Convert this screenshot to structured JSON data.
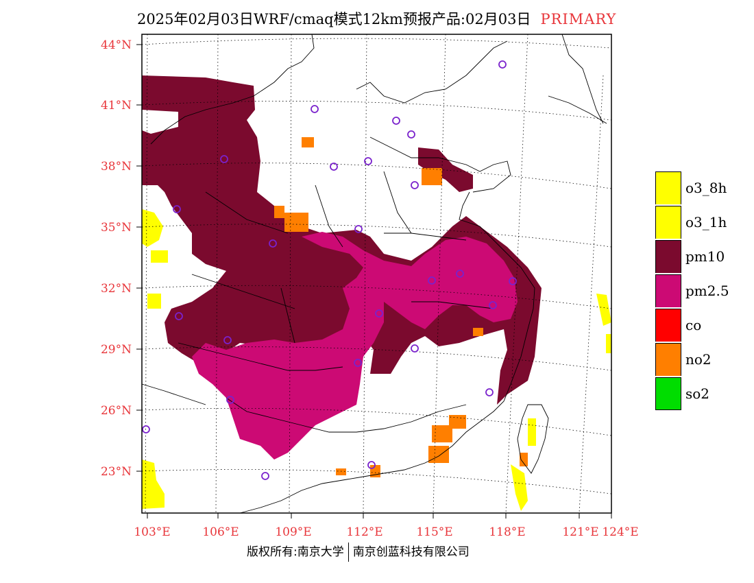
{
  "title": {
    "main": "2025年02月03日WRF/cmaq模式12km预报产品:02月03日",
    "tag": "PRIMARY"
  },
  "axes": {
    "lat_labels": [
      "44°N",
      "41°N",
      "38°N",
      "35°N",
      "32°N",
      "29°N",
      "26°N",
      "23°N"
    ],
    "lon_labels": [
      "103°E",
      "106°E",
      "109°E",
      "112°E",
      "115°E",
      "118°E",
      "121°E",
      "124°E"
    ],
    "tick_color": "#e8353a"
  },
  "legend": [
    {
      "label": "o3_8h",
      "color": "#ffff00"
    },
    {
      "label": "o3_1h",
      "color": "#ffff00"
    },
    {
      "label": "pm10",
      "color": "#7b0a2e"
    },
    {
      "label": "pm2.5",
      "color": "#cc0a74"
    },
    {
      "label": "co",
      "color": "#ff0000"
    },
    {
      "label": "no2",
      "color": "#ff7f00"
    },
    {
      "label": "so2",
      "color": "#00dd00"
    }
  ],
  "footer": {
    "left": "版权所有:南京大学",
    "right": "南京创蓝科技有限公司"
  },
  "map": {
    "region": "China (east)",
    "station_marker_color": "#7a22cc"
  }
}
